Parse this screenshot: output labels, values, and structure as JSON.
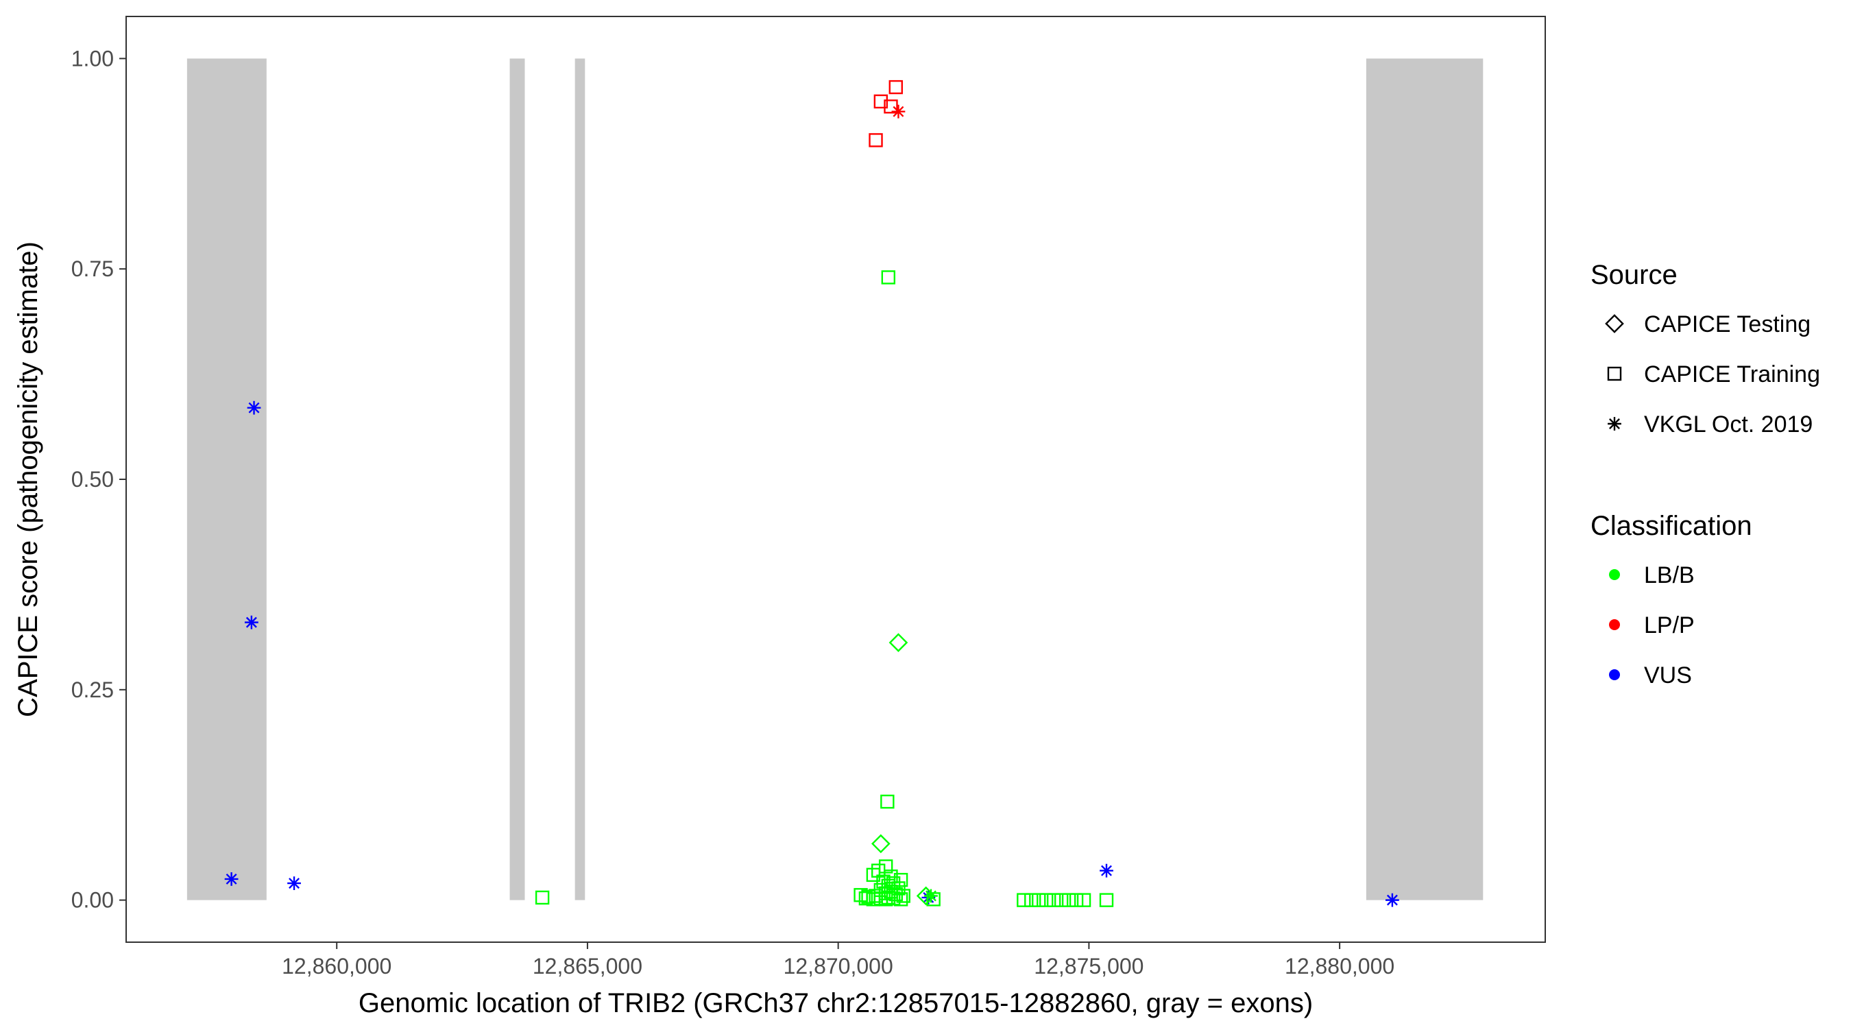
{
  "chart_data": {
    "type": "scatter",
    "title": "",
    "xlabel": "Genomic location of TRIB2 (GRCh37 chr2:12857015-12882860, gray = exons)",
    "ylabel": "CAPICE score (pathogenicity estimate)",
    "xlim": [
      12855800,
      12884100
    ],
    "ylim": [
      -0.05,
      1.05
    ],
    "x_ticks": [
      12860000,
      12865000,
      12870000,
      12875000,
      12880000
    ],
    "x_tick_labels": [
      "12,860,000",
      "12,865,000",
      "12,870,000",
      "12,875,000",
      "12,880,000"
    ],
    "y_ticks": [
      0,
      0.25,
      0.5,
      0.75,
      1.0
    ],
    "y_tick_labels": [
      "0.00",
      "0.25",
      "0.50",
      "0.75",
      "1.00"
    ],
    "grid": false,
    "exons": [
      {
        "start": 12857015,
        "end": 12858600
      },
      {
        "start": 12863450,
        "end": 12863750
      },
      {
        "start": 12864750,
        "end": 12864950
      },
      {
        "start": 12880530,
        "end": 12882860
      }
    ],
    "exon_color": "#c8c8c8",
    "legend": {
      "placement": "right",
      "source_title": "Source",
      "source_entries": [
        {
          "label": "CAPICE Testing",
          "shape": "diamond"
        },
        {
          "label": "CAPICE Training",
          "shape": "square"
        },
        {
          "label": "VKGL Oct. 2019",
          "shape": "asterisk"
        }
      ],
      "class_title": "Classification",
      "class_entries": [
        {
          "label": "LB/B",
          "color": "#00ff00"
        },
        {
          "label": "LP/P",
          "color": "#ff0000"
        },
        {
          "label": "VUS",
          "color": "#0000ff"
        }
      ]
    },
    "points": [
      {
        "x": 12858350,
        "y": 0.585,
        "source": "VKGL Oct. 2019",
        "class": "VUS"
      },
      {
        "x": 12858300,
        "y": 0.33,
        "source": "VKGL Oct. 2019",
        "class": "VUS"
      },
      {
        "x": 12857900,
        "y": 0.025,
        "source": "VKGL Oct. 2019",
        "class": "VUS"
      },
      {
        "x": 12859150,
        "y": 0.02,
        "source": "VKGL Oct. 2019",
        "class": "VUS"
      },
      {
        "x": 12871800,
        "y": 0.003,
        "source": "VKGL Oct. 2019",
        "class": "VUS"
      },
      {
        "x": 12875350,
        "y": 0.035,
        "source": "VKGL Oct. 2019",
        "class": "VUS"
      },
      {
        "x": 12881050,
        "y": 0.0,
        "source": "VKGL Oct. 2019",
        "class": "VUS"
      },
      {
        "x": 12871200,
        "y": 0.937,
        "source": "VKGL Oct. 2019",
        "class": "LP/P"
      },
      {
        "x": 12871850,
        "y": 0.005,
        "source": "VKGL Oct. 2019",
        "class": "LB/B"
      },
      {
        "x": 12871150,
        "y": 0.966,
        "source": "CAPICE Training",
        "class": "LP/P"
      },
      {
        "x": 12870850,
        "y": 0.949,
        "source": "CAPICE Training",
        "class": "LP/P"
      },
      {
        "x": 12871050,
        "y": 0.943,
        "source": "CAPICE Training",
        "class": "LP/P"
      },
      {
        "x": 12870750,
        "y": 0.903,
        "source": "CAPICE Training",
        "class": "LP/P"
      },
      {
        "x": 12871000,
        "y": 0.74,
        "source": "CAPICE Training",
        "class": "LB/B"
      },
      {
        "x": 12870980,
        "y": 0.117,
        "source": "CAPICE Training",
        "class": "LB/B"
      },
      {
        "x": 12864100,
        "y": 0.003,
        "source": "CAPICE Training",
        "class": "LB/B"
      },
      {
        "x": 12870950,
        "y": 0.04,
        "source": "CAPICE Training",
        "class": "LB/B"
      },
      {
        "x": 12870800,
        "y": 0.035,
        "source": "CAPICE Training",
        "class": "LB/B"
      },
      {
        "x": 12870700,
        "y": 0.03,
        "source": "CAPICE Training",
        "class": "LB/B"
      },
      {
        "x": 12871050,
        "y": 0.028,
        "source": "CAPICE Training",
        "class": "LB/B"
      },
      {
        "x": 12871250,
        "y": 0.024,
        "source": "CAPICE Training",
        "class": "LB/B"
      },
      {
        "x": 12870900,
        "y": 0.022,
        "source": "CAPICE Training",
        "class": "LB/B"
      },
      {
        "x": 12871100,
        "y": 0.02,
        "source": "CAPICE Training",
        "class": "LB/B"
      },
      {
        "x": 12871000,
        "y": 0.017,
        "source": "CAPICE Training",
        "class": "LB/B"
      },
      {
        "x": 12871200,
        "y": 0.014,
        "source": "CAPICE Training",
        "class": "LB/B"
      },
      {
        "x": 12870850,
        "y": 0.012,
        "source": "CAPICE Training",
        "class": "LB/B"
      },
      {
        "x": 12871050,
        "y": 0.01,
        "source": "CAPICE Training",
        "class": "LB/B"
      },
      {
        "x": 12870950,
        "y": 0.008,
        "source": "CAPICE Training",
        "class": "LB/B"
      },
      {
        "x": 12871150,
        "y": 0.007,
        "source": "CAPICE Training",
        "class": "LB/B"
      },
      {
        "x": 12870450,
        "y": 0.006,
        "source": "CAPICE Training",
        "class": "LB/B"
      },
      {
        "x": 12870750,
        "y": 0.005,
        "source": "CAPICE Training",
        "class": "LB/B"
      },
      {
        "x": 12871300,
        "y": 0.005,
        "source": "CAPICE Training",
        "class": "LB/B"
      },
      {
        "x": 12870600,
        "y": 0.004,
        "source": "CAPICE Training",
        "class": "LB/B"
      },
      {
        "x": 12871000,
        "y": 0.003,
        "source": "CAPICE Training",
        "class": "LB/B"
      },
      {
        "x": 12870550,
        "y": 0.002,
        "source": "CAPICE Training",
        "class": "LB/B"
      },
      {
        "x": 12870850,
        "y": 0.002,
        "source": "CAPICE Training",
        "class": "LB/B"
      },
      {
        "x": 12871100,
        "y": 0.002,
        "source": "CAPICE Training",
        "class": "LB/B"
      },
      {
        "x": 12871250,
        "y": 0.001,
        "source": "CAPICE Training",
        "class": "LB/B"
      },
      {
        "x": 12870700,
        "y": 0.001,
        "source": "CAPICE Training",
        "class": "LB/B"
      },
      {
        "x": 12870950,
        "y": 0.001,
        "source": "CAPICE Training",
        "class": "LB/B"
      },
      {
        "x": 12871900,
        "y": 0.001,
        "source": "CAPICE Training",
        "class": "LB/B"
      },
      {
        "x": 12873700,
        "y": 0.0,
        "source": "CAPICE Training",
        "class": "LB/B"
      },
      {
        "x": 12873850,
        "y": 0.0,
        "source": "CAPICE Training",
        "class": "LB/B"
      },
      {
        "x": 12874000,
        "y": 0.0,
        "source": "CAPICE Training",
        "class": "LB/B"
      },
      {
        "x": 12874150,
        "y": 0.0,
        "source": "CAPICE Training",
        "class": "LB/B"
      },
      {
        "x": 12874300,
        "y": 0.0,
        "source": "CAPICE Training",
        "class": "LB/B"
      },
      {
        "x": 12874450,
        "y": 0.0,
        "source": "CAPICE Training",
        "class": "LB/B"
      },
      {
        "x": 12874600,
        "y": 0.0,
        "source": "CAPICE Training",
        "class": "LB/B"
      },
      {
        "x": 12874750,
        "y": 0.0,
        "source": "CAPICE Training",
        "class": "LB/B"
      },
      {
        "x": 12874900,
        "y": 0.0,
        "source": "CAPICE Training",
        "class": "LB/B"
      },
      {
        "x": 12875350,
        "y": 0.0,
        "source": "CAPICE Training",
        "class": "LB/B"
      },
      {
        "x": 12871200,
        "y": 0.306,
        "source": "CAPICE Testing",
        "class": "LB/B"
      },
      {
        "x": 12870850,
        "y": 0.067,
        "source": "CAPICE Testing",
        "class": "LB/B"
      },
      {
        "x": 12871750,
        "y": 0.005,
        "source": "CAPICE Testing",
        "class": "LB/B"
      }
    ]
  }
}
